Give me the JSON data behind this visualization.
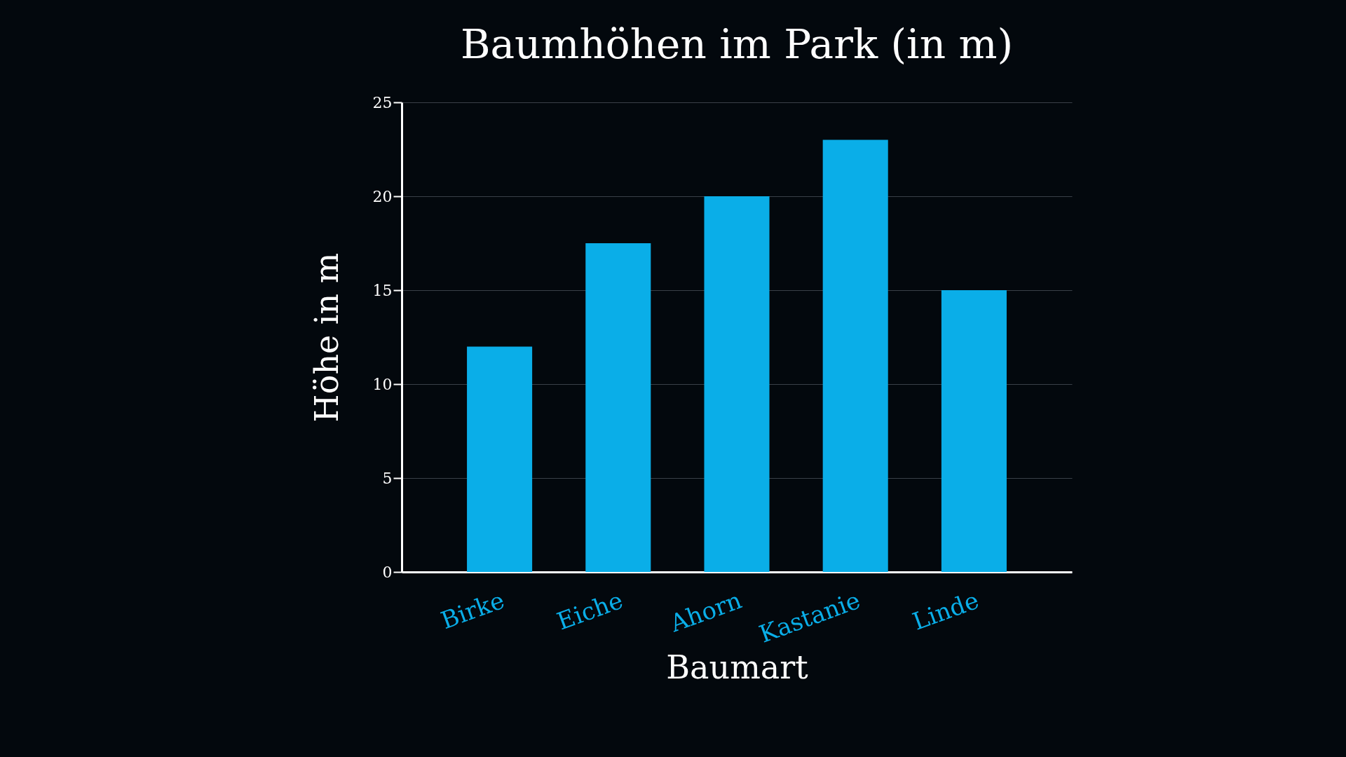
{
  "chart_data": {
    "type": "bar",
    "title": "Baumhöhen im Park (in m)",
    "xlabel": "Baumart",
    "ylabel": "Höhe in m",
    "categories": [
      "Birke",
      "Eiche",
      "Ahorn",
      "Kastanie",
      "Linde"
    ],
    "values": [
      12,
      17.5,
      20,
      23,
      15
    ],
    "color": "#0aaee8",
    "ylim": [
      0,
      25
    ],
    "yticks": [
      0,
      5,
      10,
      15,
      20,
      25
    ],
    "grid": "y"
  }
}
